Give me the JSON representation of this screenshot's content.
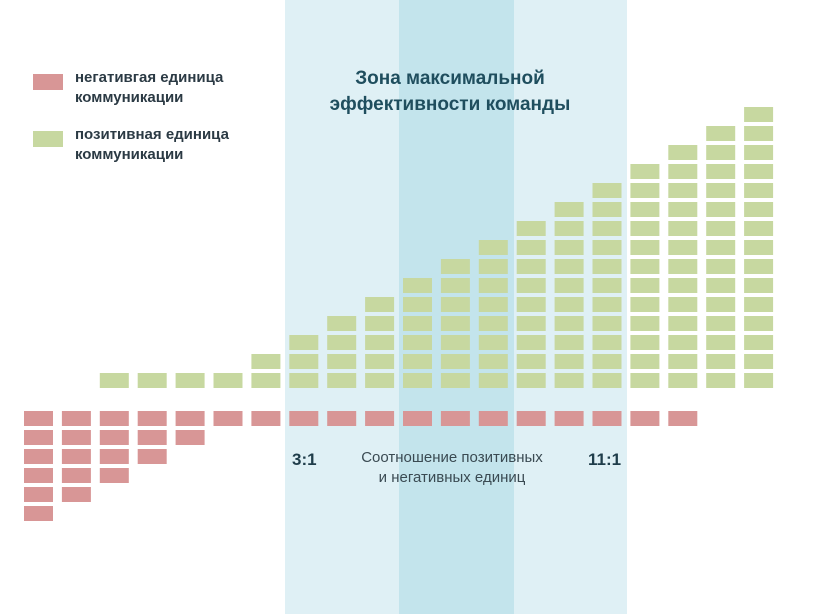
{
  "colors": {
    "positive": "#c7d8a0",
    "negative": "#d89696",
    "zone_outer": "#dff0f5",
    "zone_inner": "#c3e4ec",
    "title": "#1f4e5e"
  },
  "legend": {
    "negative_label": "негативгая единица\nкоммуникации",
    "positive_label": "позитивная единица\nкоммуникации"
  },
  "zone": {
    "title": "Зона максимальной\nэффективности команды"
  },
  "axis": {
    "left_ratio": "3:1",
    "right_ratio": "11:1",
    "xlabel": "Соотношение позитивных\nи негативных единиц"
  },
  "chart_data": {
    "type": "bar",
    "title": "Зона максимальной эффективности команды",
    "xlabel": "Соотношение позитивных и негативных единиц",
    "ylabel": "",
    "columns": 20,
    "series": [
      {
        "name": "позитивная единица коммуникации",
        "values": [
          0,
          0,
          1,
          1,
          1,
          1,
          2,
          3,
          4,
          5,
          6,
          7,
          8,
          9,
          10,
          11,
          12,
          13,
          14,
          15
        ]
      },
      {
        "name": "негативгая единица коммуникации",
        "values": [
          6,
          5,
          4,
          3,
          2,
          1,
          1,
          1,
          1,
          1,
          1,
          1,
          1,
          1,
          1,
          1,
          1,
          1,
          0,
          0
        ]
      }
    ],
    "annotations": [
      "3:1",
      "11:1"
    ],
    "highlight_zone": {
      "label": "Зона максимальной эффективности команды",
      "from_ratio": "3:1",
      "to_ratio": "11:1"
    }
  }
}
